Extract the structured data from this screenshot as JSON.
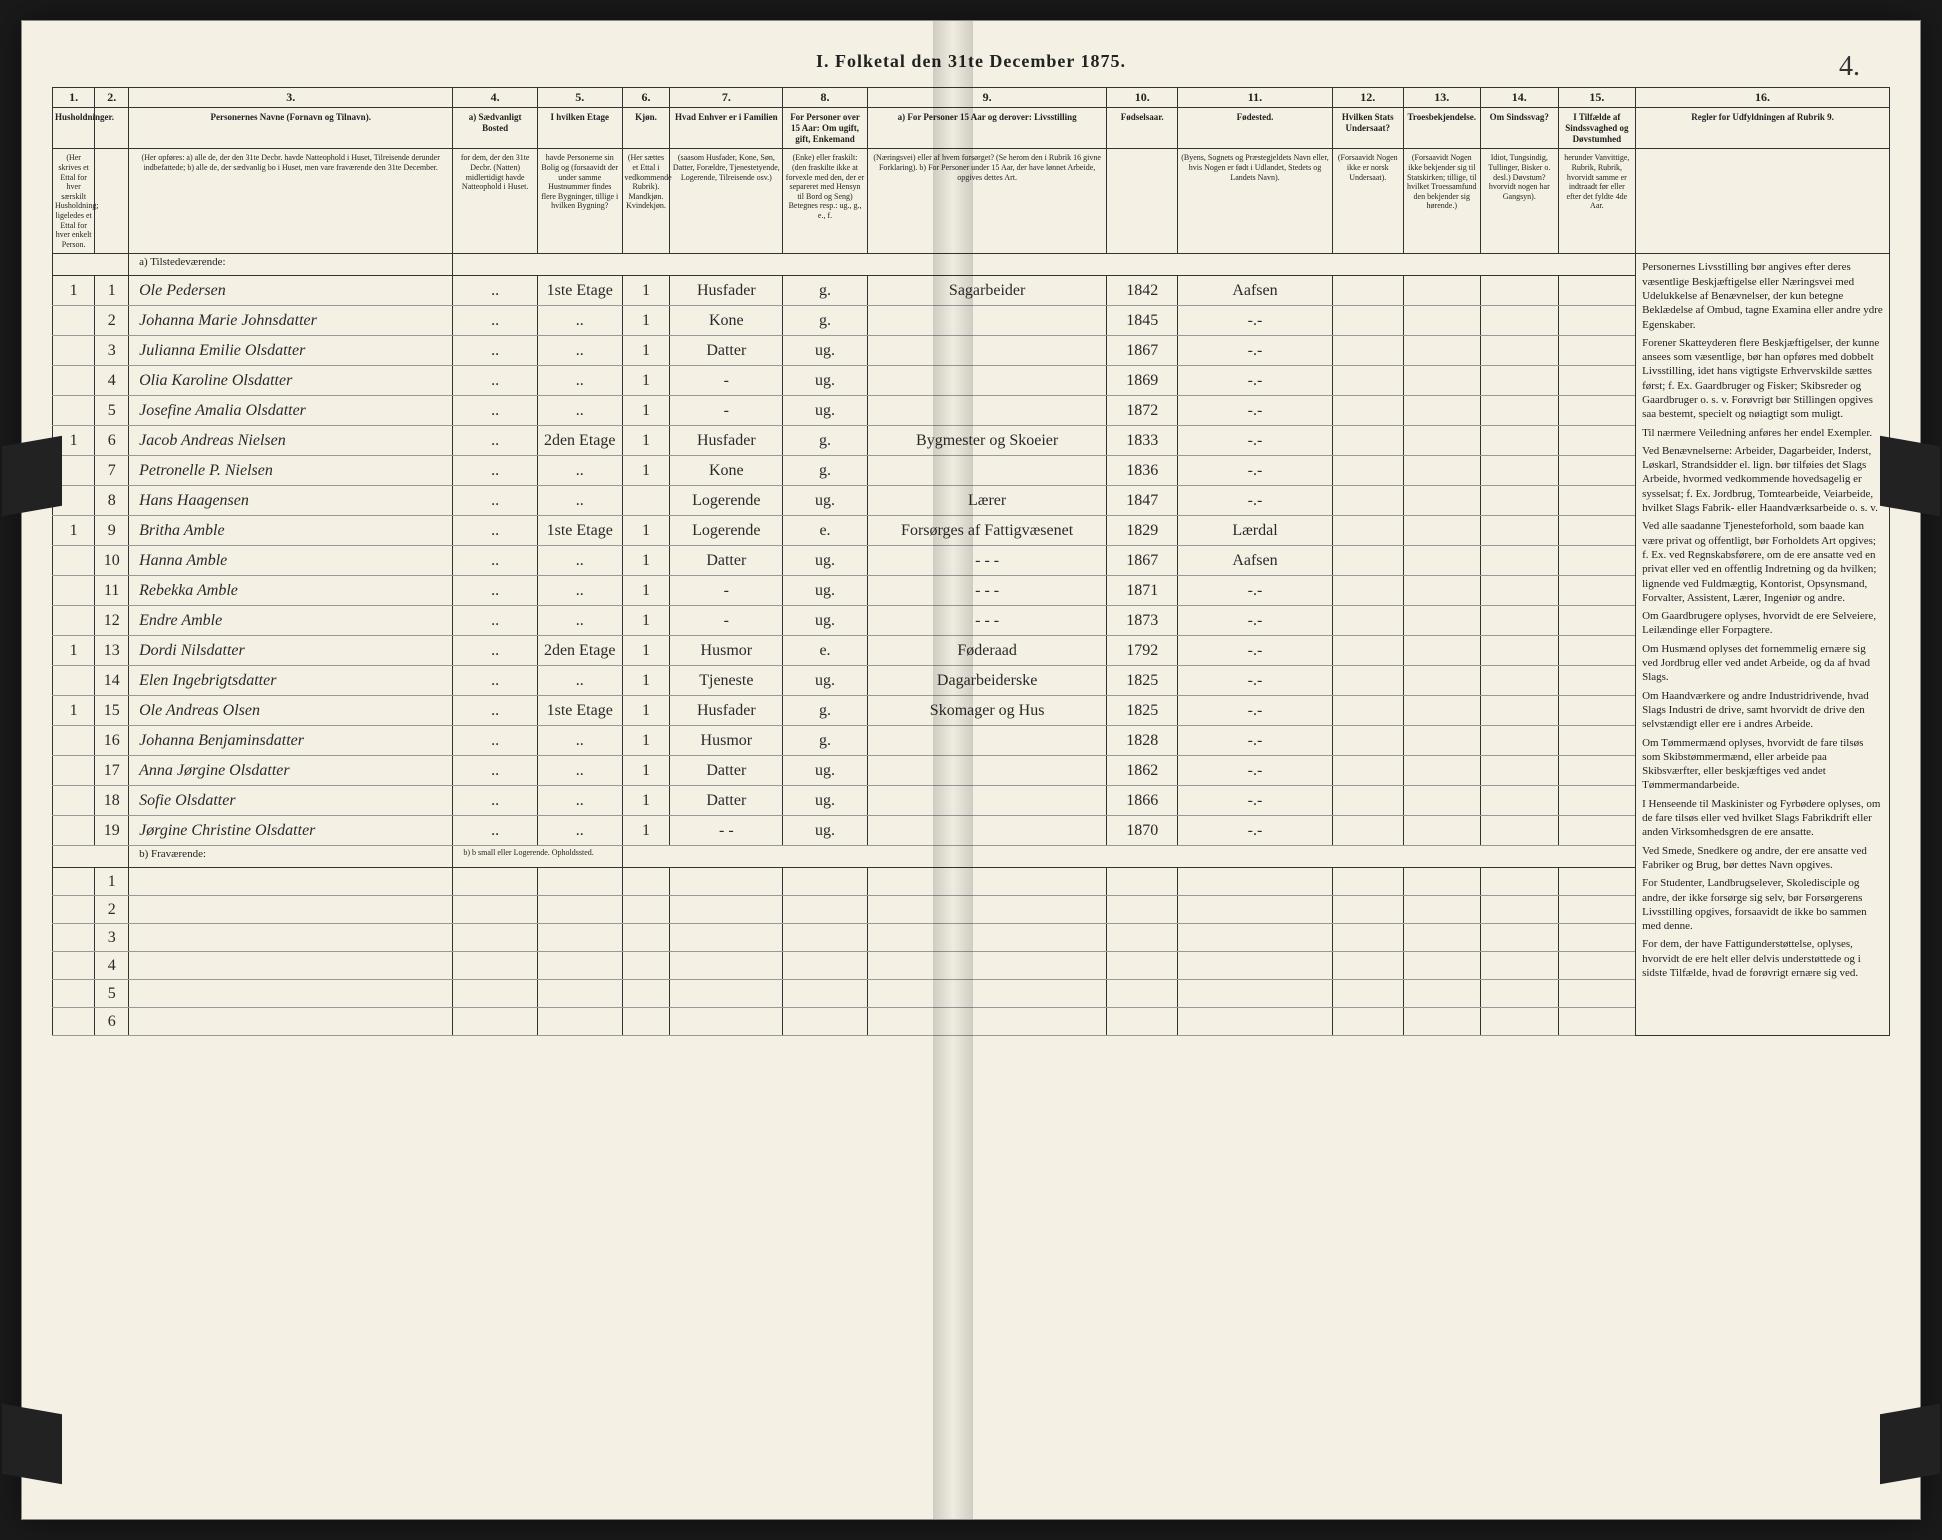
{
  "page_number": "4.",
  "title": "I. Folketal den 31te December 1875.",
  "columns": {
    "nums": [
      "1.",
      "2.",
      "3.",
      "4.",
      "5.",
      "6.",
      "7.",
      "8.",
      "9.",
      "10.",
      "11.",
      "12.",
      "13.",
      "14.",
      "15.",
      "16."
    ],
    "headers": [
      "Husholdninger.",
      "",
      "Personernes Navne (Fornavn og Tilnavn).",
      "a) Sædvanligt Bosted",
      "I hvilken Etage",
      "Kjøn.",
      "Hvad Enhver er i Familien",
      "For Personer over 15 Aar: Om ugift, gift, Enkemand",
      "a) For Personer 15 Aar og derover: Livsstilling",
      "Fødselsaar.",
      "Fødested.",
      "Hvilken Stats Undersaat?",
      "Troesbekjendelse.",
      "Om Sindssvag?",
      "I Tilfælde af Sindssvaghed og Døvstumhed",
      "Regler for Udfyldningen af Rubrik 9."
    ],
    "sub1": "(Her skrives et Ettal for hver særskilt Husholdning; ligeledes et Ettal for hver enkelt Person.",
    "sub2": "(Her opføres: a) alle de, der den 31te Decbr. havde Natteophold i Huset, Tilreisende derunder indbefattede; b) alle de, der sædvanlig bo i Huset, men vare fraværende den 31te December.",
    "sub4": "for dem, der den 31te Decbr. (Natten) midlertidigt havde Natteophold i Huset.",
    "sub5": "havde Personerne sin Bolig og (forsaavidt der under samme Hustnummer findes flere Bygninger, tillige i hvilken Bygning?",
    "sub6": "(Her sættes et Ettal i vedkommende Rubrik). Mandkjøn. Kvindekjøn.",
    "sub7": "(saasom Husfader, Kone, Søn, Datter, Forældre, Tjenestetyende, Logerende, Tilreisende osv.)",
    "sub8": "(Enke) eller fraskilt: (den fraskilte ikke at forvexle med den, der er separeret med Hensyn til Bord og Seng) Betegnes resp.: ug., g., e., f.",
    "sub9": "(Næringsvei) eller af hvem forsørget? (Se herom den i Rubrik 16 givne Forklaring). b) For Personer under 15 Aar, der have lønnet Arbeide, opgives dettes Art.",
    "sub11": "(Byens, Sognets og Præstegjeldets Navn eller, hvis Nogen er født i Udlandet, Stedets og Landets Navn).",
    "sub12": "(Forsaavidt Nogen ikke er norsk Undersaat).",
    "sub13": "(Forsaavidt Nogen ikke bekjender sig til Statskirken; tillige, til hvilket Troessamfund den bekjender sig hørende.)",
    "sub14": "Idiot, Tungsindig, Tullinger, Bisker o. desl.) Døvstum? hvorvidt nogen har Gangsyn).",
    "sub15": "herunder Vanvittige, Rubrik, Rubrik, hvorvidt samme er indtraadt før eller efter det fyldte 4de Aar."
  },
  "sections": {
    "present": "a) Tilstedeværende:",
    "absent": "b) Fraværende:",
    "absent_note": "b) b small eller Logerende. Opholdssted."
  },
  "rows": [
    {
      "h": "1",
      "n": "1",
      "name": "Ole Pedersen",
      "col4": "..",
      "col5": "1ste Etage",
      "col6": "1",
      "col7": "Husfader",
      "col8": "g.",
      "col9": "Sagarbeider",
      "col10": "1842",
      "col11": "Aafsen"
    },
    {
      "h": "",
      "n": "2",
      "name": "Johanna Marie Johnsdatter",
      "col4": "..",
      "col5": "..",
      "col6": "1",
      "col7": "Kone",
      "col8": "g.",
      "col9": "",
      "col10": "1845",
      "col11": "-.-"
    },
    {
      "h": "",
      "n": "3",
      "name": "Julianna Emilie Olsdatter",
      "col4": "..",
      "col5": "..",
      "col6": "1",
      "col7": "Datter",
      "col8": "ug.",
      "col9": "",
      "col10": "1867",
      "col11": "-.-"
    },
    {
      "h": "",
      "n": "4",
      "name": "Olia Karoline Olsdatter",
      "col4": "..",
      "col5": "..",
      "col6": "1",
      "col7": "-",
      "col8": "ug.",
      "col9": "",
      "col10": "1869",
      "col11": "-.-"
    },
    {
      "h": "",
      "n": "5",
      "name": "Josefine Amalia Olsdatter",
      "col4": "..",
      "col5": "..",
      "col6": "1",
      "col7": "-",
      "col8": "ug.",
      "col9": "",
      "col10": "1872",
      "col11": "-.-"
    },
    {
      "h": "1",
      "n": "6",
      "name": "Jacob Andreas Nielsen",
      "col4": "..",
      "col5": "2den Etage",
      "col6": "1",
      "col7": "Husfader",
      "col8": "g.",
      "col9": "Bygmester og Skoeier",
      "col10": "1833",
      "col11": "-.-"
    },
    {
      "h": "",
      "n": "7",
      "name": "Petronelle P. Nielsen",
      "col4": "..",
      "col5": "..",
      "col6": "1",
      "col7": "Kone",
      "col8": "g.",
      "col9": "",
      "col10": "1836",
      "col11": "-.-"
    },
    {
      "h": "",
      "n": "8",
      "name": "Hans Haagensen",
      "col4": "..",
      "col5": "..",
      "col6": "",
      "col7": "Logerende",
      "col8": "ug.",
      "col9": "Lærer",
      "col10": "1847",
      "col11": "-.-"
    },
    {
      "h": "1",
      "n": "9",
      "name": "Britha Amble",
      "col4": "..",
      "col5": "1ste Etage",
      "col6": "1",
      "col7": "Logerende",
      "col8": "e.",
      "col9": "Forsørges af Fattigvæsenet",
      "col10": "1829",
      "col11": "Lærdal"
    },
    {
      "h": "",
      "n": "10",
      "name": "Hanna Amble",
      "col4": "..",
      "col5": "..",
      "col6": "1",
      "col7": "Datter",
      "col8": "ug.",
      "col9": "- - -",
      "col10": "1867",
      "col11": "Aafsen"
    },
    {
      "h": "",
      "n": "11",
      "name": "Rebekka Amble",
      "col4": "..",
      "col5": "..",
      "col6": "1",
      "col7": "-",
      "col8": "ug.",
      "col9": "- - -",
      "col10": "1871",
      "col11": "-.-"
    },
    {
      "h": "",
      "n": "12",
      "name": "Endre Amble",
      "col4": "..",
      "col5": "..",
      "col6": "1",
      "col7": "-",
      "col8": "ug.",
      "col9": "- - -",
      "col10": "1873",
      "col11": "-.-"
    },
    {
      "h": "1",
      "n": "13",
      "name": "Dordi Nilsdatter",
      "col4": "..",
      "col5": "2den Etage",
      "col6": "1",
      "col7": "Husmor",
      "col8": "e.",
      "col9": "Føderaad",
      "col10": "1792",
      "col11": "-.-"
    },
    {
      "h": "",
      "n": "14",
      "name": "Elen Ingebrigtsdatter",
      "col4": "..",
      "col5": "..",
      "col6": "1",
      "col7": "Tjeneste",
      "col8": "ug.",
      "col9": "Dagarbeiderske",
      "col10": "1825",
      "col11": "-.-"
    },
    {
      "h": "1",
      "n": "15",
      "name": "Ole Andreas Olsen",
      "col4": "..",
      "col5": "1ste Etage",
      "col6": "1",
      "col7": "Husfader",
      "col8": "g.",
      "col9": "Skomager og Hus",
      "col10": "1825",
      "col11": "-.-"
    },
    {
      "h": "",
      "n": "16",
      "name": "Johanna Benjaminsdatter",
      "col4": "..",
      "col5": "..",
      "col6": "1",
      "col7": "Husmor",
      "col8": "g.",
      "col9": "",
      "col10": "1828",
      "col11": "-.-"
    },
    {
      "h": "",
      "n": "17",
      "name": "Anna Jørgine Olsdatter",
      "col4": "..",
      "col5": "..",
      "col6": "1",
      "col7": "Datter",
      "col8": "ug.",
      "col9": "",
      "col10": "1862",
      "col11": "-.-"
    },
    {
      "h": "",
      "n": "18",
      "name": "Sofie Olsdatter",
      "col4": "..",
      "col5": "..",
      "col6": "1",
      "col7": "Datter",
      "col8": "ug.",
      "col9": "",
      "col10": "1866",
      "col11": "-.-"
    },
    {
      "h": "",
      "n": "19",
      "name": "Jørgine Christine Olsdatter",
      "col4": "..",
      "col5": "..",
      "col6": "1",
      "col7": "- -",
      "col8": "ug.",
      "col9": "",
      "col10": "1870",
      "col11": "-.-"
    }
  ],
  "rules_text": {
    "p1": "Personernes Livsstilling bør angives efter deres væsentlige Beskjæftigelse eller Næringsvei med Udelukkelse af Benævnelser, der kun betegne Beklædelse af Ombud, tagne Examina eller andre ydre Egenskaber.",
    "p2": "Forener Skatteyderen flere Beskjæftigelser, der kunne ansees som væsentlige, bør han opføres med dobbelt Livsstilling, idet hans vigtigste Erhvervskilde sættes først; f. Ex. Gaardbruger og Fisker; Skibsreder og Gaardbruger o. s. v. Forøvrigt bør Stillingen opgives saa bestemt, specielt og nøiagtigt som muligt.",
    "p3": "Til nærmere Veiledning anføres her endel Exempler.",
    "p4": "Ved Benævnelserne: Arbeider, Dagarbeider, Inderst, Løskarl, Strandsidder el. lign. bør tilføies det Slags Arbeide, hvormed vedkommende hovedsagelig er sysselsat; f. Ex. Jordbrug, Tomtearbeide, Veiarbeide, hvilket Slags Fabrik- eller Haandværksarbeide o. s. v.",
    "p5": "Ved alle saadanne Tjenesteforhold, som baade kan være privat og offentligt, bør Forholdets Art opgives; f. Ex. ved Regnskabsførere, om de ere ansatte ved en privat eller ved en offentlig Indretning og da hvilken; lignende ved Fuldmægtig, Kontorist, Opsynsmand, Forvalter, Assistent, Lærer, Ingeniør og andre.",
    "p6": "Om Gaardbrugere oplyses, hvorvidt de ere Selveiere, Leilændinge eller Forpagtere.",
    "p7": "Om Husmænd oplyses det fornemmelig ernære sig ved Jordbrug eller ved andet Arbeide, og da af hvad Slags.",
    "p8": "Om Haandværkere og andre Industridrivende, hvad Slags Industri de drive, samt hvorvidt de drive den selvstændigt eller ere i andres Arbeide.",
    "p9": "Om Tømmermænd oplyses, hvorvidt de fare tilsøs som Skibstømmermænd, eller arbeide paa Skibsværfter, eller beskjæftiges ved andet Tømmermandarbeide.",
    "p10": "I Henseende til Maskinister og Fyrbødere oplyses, om de fare tilsøs eller ved hvilket Slags Fabrikdrift eller anden Virksomhedsgren de ere ansatte.",
    "p11": "Ved Smede, Snedkere og andre, der ere ansatte ved Fabriker og Brug, bør dettes Navn opgives.",
    "p12": "For Studenter, Landbrugselever, Skoledisciple og andre, der ikke forsørge sig selv, bør Forsørgerens Livsstilling opgives, forsaavidt de ikke bo sammen med denne.",
    "p13": "For dem, der have Fattigunderstøttelse, oplyses, hvorvidt de ere helt eller delvis understøttede og i sidste Tilfælde, hvad de forøvrigt ernære sig ved."
  },
  "col_widths": [
    "30",
    "24",
    "230",
    "60",
    "60",
    "34",
    "80",
    "60",
    "170",
    "50",
    "110",
    "50",
    "55",
    "55",
    "55",
    "180"
  ]
}
